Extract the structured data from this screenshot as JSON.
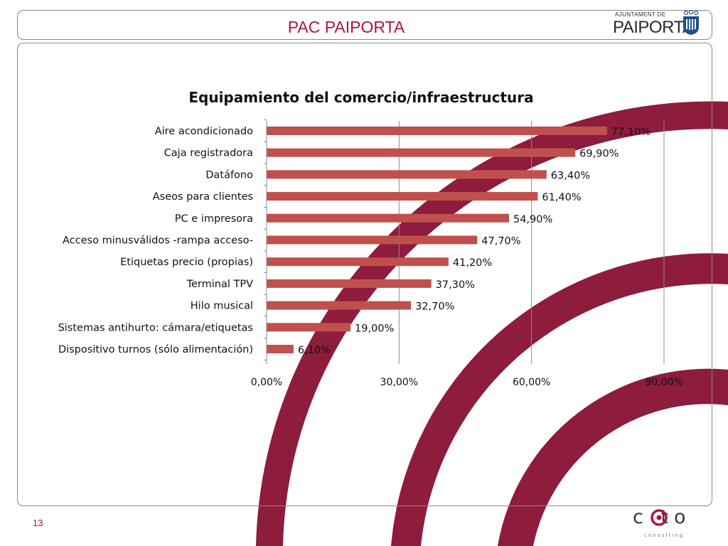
{
  "header": {
    "title": "PAC PAIPORTA",
    "logo_small": "AJUNTAMENT DE",
    "logo_big": "PAIPORTA"
  },
  "footer": {
    "page_number": "13",
    "brand": "c  to",
    "brand_sub": "consulting"
  },
  "colors": {
    "bar": "#c0504d",
    "accent": "#b0123f",
    "arc_fill": "#8e1c3c"
  },
  "chart_data": {
    "type": "bar",
    "orientation": "horizontal",
    "title": "Equipamiento del comercio/infraestructura",
    "categories": [
      "Aire acondicionado",
      "Caja registradora",
      "Datáfono",
      "Aseos para clientes",
      "PC e impresora",
      "Acceso minusválidos -rampa acceso-",
      "Etiquetas precio (propias)",
      "Terminal TPV",
      "Hilo musical",
      "Sistemas antihurto: cámara/etiquetas",
      "Dispositivo turnos (sólo alimentación)"
    ],
    "values": [
      77.1,
      69.9,
      63.4,
      61.4,
      54.9,
      47.7,
      41.2,
      37.3,
      32.7,
      19.0,
      6.1
    ],
    "value_labels": [
      "77,10%",
      "69,90%",
      "63,40%",
      "61,40%",
      "54,90%",
      "47,70%",
      "41,20%",
      "37,30%",
      "32,70%",
      "19,00%",
      "6,10%"
    ],
    "xlim": [
      0,
      90
    ],
    "xticks": [
      0,
      30,
      60,
      90
    ],
    "xtick_labels": [
      "0,00%",
      "30,00%",
      "60,00%",
      "90,00%"
    ],
    "grid": true,
    "legend": "none",
    "xlabel": "",
    "ylabel": ""
  }
}
